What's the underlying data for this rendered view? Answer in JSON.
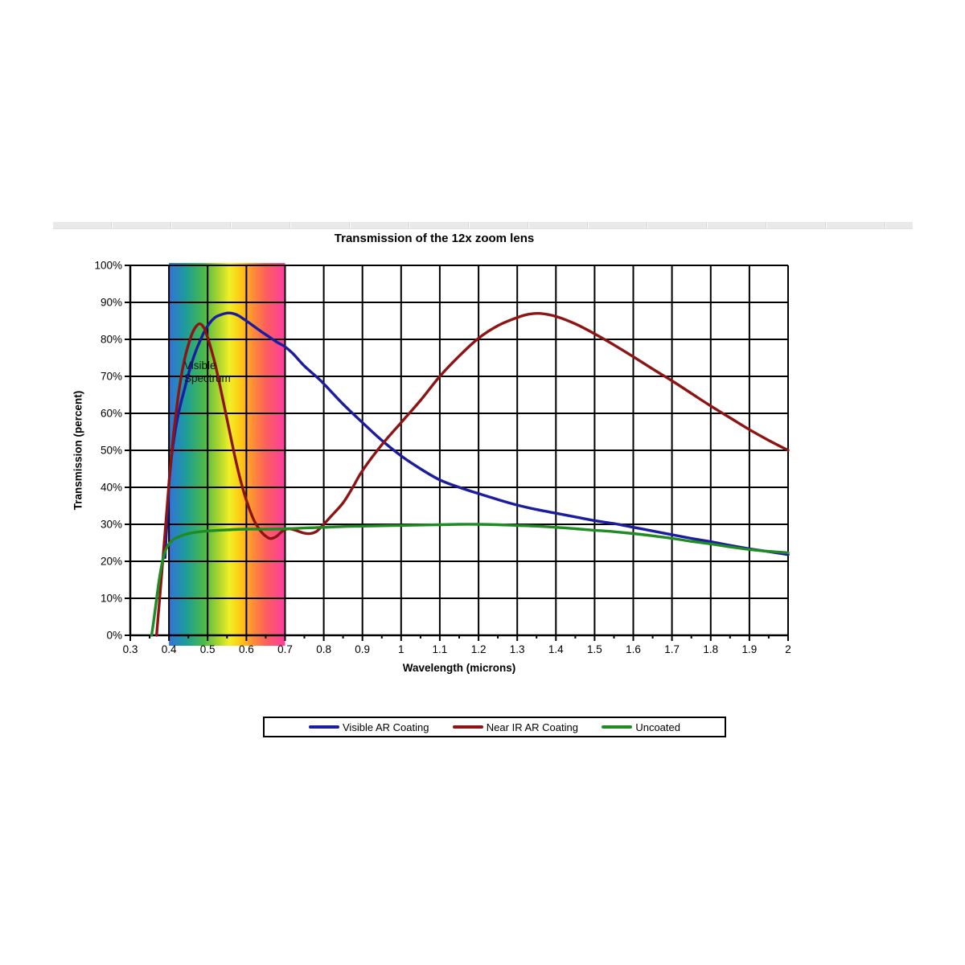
{
  "chart_data": {
    "type": "line",
    "title": "Transmission of the 12x zoom lens",
    "xlabel": "Wavelength (microns)",
    "ylabel": "Transmission (percent)",
    "xlim": [
      0.3,
      2.0
    ],
    "ylim": [
      0,
      100
    ],
    "grid": true,
    "legend_position": "bottom-center",
    "x_tick_labels": [
      "0.3",
      "0.4",
      "0.5",
      "0.6",
      "0.7",
      "0.8",
      "0.9",
      "1",
      "1.1",
      "1.2",
      "1.3",
      "1.4",
      "1.5",
      "1.6",
      "1.7",
      "1.8",
      "1.9",
      "2"
    ],
    "y_tick_labels": [
      "0%",
      "10%",
      "20%",
      "30%",
      "40%",
      "50%",
      "60%",
      "70%",
      "80%",
      "90%",
      "100%"
    ],
    "x_minor_tick_step": 0.05,
    "axis_color": "#000000",
    "visible_spectrum_band": {
      "label": "Visible Spectrum",
      "x_start": 0.4,
      "x_end": 0.7,
      "gradient_stops": [
        {
          "offset": 0,
          "color": "#3272dc"
        },
        {
          "offset": 0.15,
          "color": "#1d9e96"
        },
        {
          "offset": 0.3,
          "color": "#4ab94a"
        },
        {
          "offset": 0.42,
          "color": "#a5d32f"
        },
        {
          "offset": 0.52,
          "color": "#f0ef27"
        },
        {
          "offset": 0.62,
          "color": "#ffc713"
        },
        {
          "offset": 0.72,
          "color": "#fe8f35"
        },
        {
          "offset": 0.84,
          "color": "#fb5e5e"
        },
        {
          "offset": 1,
          "color": "#fd3da2"
        }
      ]
    },
    "series": [
      {
        "name": "Visible AR Coating",
        "color": "#1c1ca0",
        "points": [
          [
            0.39,
            21
          ],
          [
            0.393,
            27
          ],
          [
            0.397,
            34
          ],
          [
            0.4,
            41
          ],
          [
            0.405,
            46.5
          ],
          [
            0.41,
            51
          ],
          [
            0.42,
            57.5
          ],
          [
            0.43,
            62.5
          ],
          [
            0.44,
            66.5
          ],
          [
            0.45,
            70.5
          ],
          [
            0.46,
            74
          ],
          [
            0.47,
            77
          ],
          [
            0.48,
            79.5
          ],
          [
            0.49,
            81.8
          ],
          [
            0.5,
            83.6
          ],
          [
            0.51,
            85
          ],
          [
            0.52,
            86
          ],
          [
            0.535,
            86.7
          ],
          [
            0.55,
            87.1
          ],
          [
            0.565,
            87
          ],
          [
            0.58,
            86.4
          ],
          [
            0.6,
            85
          ],
          [
            0.62,
            83.5
          ],
          [
            0.64,
            82
          ],
          [
            0.66,
            80.6
          ],
          [
            0.68,
            79.2
          ],
          [
            0.7,
            78
          ],
          [
            0.72,
            76.2
          ],
          [
            0.75,
            72.8
          ],
          [
            0.78,
            70
          ],
          [
            0.8,
            68
          ],
          [
            0.85,
            62.5
          ],
          [
            0.9,
            57.5
          ],
          [
            0.95,
            52.7
          ],
          [
            1.0,
            48.5
          ],
          [
            1.05,
            45
          ],
          [
            1.1,
            42
          ],
          [
            1.15,
            40
          ],
          [
            1.2,
            38.3
          ],
          [
            1.25,
            36.7
          ],
          [
            1.3,
            35.2
          ],
          [
            1.35,
            34
          ],
          [
            1.4,
            33
          ],
          [
            1.45,
            32
          ],
          [
            1.5,
            31
          ],
          [
            1.55,
            30.2
          ],
          [
            1.6,
            29.2
          ],
          [
            1.65,
            28.2
          ],
          [
            1.7,
            27.2
          ],
          [
            1.75,
            26.2
          ],
          [
            1.8,
            25.3
          ],
          [
            1.85,
            24.3
          ],
          [
            1.9,
            23.4
          ],
          [
            1.95,
            22.6
          ],
          [
            2.0,
            21.8
          ]
        ]
      },
      {
        "name": "Near IR AR Coating",
        "color": "#8e1414",
        "points": [
          [
            0.368,
            0
          ],
          [
            0.372,
            5
          ],
          [
            0.376,
            10
          ],
          [
            0.38,
            15
          ],
          [
            0.385,
            21.5
          ],
          [
            0.39,
            28
          ],
          [
            0.395,
            34.5
          ],
          [
            0.4,
            41
          ],
          [
            0.41,
            52.5
          ],
          [
            0.42,
            61.5
          ],
          [
            0.43,
            69
          ],
          [
            0.44,
            74.5
          ],
          [
            0.45,
            78.5
          ],
          [
            0.46,
            81.6
          ],
          [
            0.47,
            83.5
          ],
          [
            0.48,
            84.2
          ],
          [
            0.49,
            83.2
          ],
          [
            0.5,
            80.5
          ],
          [
            0.51,
            77
          ],
          [
            0.52,
            73
          ],
          [
            0.53,
            68.3
          ],
          [
            0.54,
            63.4
          ],
          [
            0.55,
            58.4
          ],
          [
            0.56,
            53.4
          ],
          [
            0.57,
            48.5
          ],
          [
            0.58,
            44
          ],
          [
            0.59,
            40
          ],
          [
            0.6,
            36.5
          ],
          [
            0.61,
            33.5
          ],
          [
            0.62,
            31
          ],
          [
            0.63,
            29.2
          ],
          [
            0.64,
            27.8
          ],
          [
            0.65,
            26.8
          ],
          [
            0.66,
            26.2
          ],
          [
            0.67,
            26.3
          ],
          [
            0.68,
            26.9
          ],
          [
            0.69,
            27.9
          ],
          [
            0.7,
            28.6
          ],
          [
            0.71,
            28.8
          ],
          [
            0.72,
            28.6
          ],
          [
            0.735,
            28.1
          ],
          [
            0.75,
            27.6
          ],
          [
            0.765,
            27.5
          ],
          [
            0.78,
            28
          ],
          [
            0.79,
            28.9
          ],
          [
            0.8,
            30
          ],
          [
            0.82,
            32.3
          ],
          [
            0.85,
            35.8
          ],
          [
            0.875,
            40
          ],
          [
            0.9,
            44.5
          ],
          [
            0.95,
            51.5
          ],
          [
            1.0,
            57.5
          ],
          [
            1.05,
            63.5
          ],
          [
            1.1,
            70
          ],
          [
            1.15,
            75.5
          ],
          [
            1.2,
            80.3
          ],
          [
            1.25,
            83.7
          ],
          [
            1.3,
            85.9
          ],
          [
            1.33,
            86.8
          ],
          [
            1.36,
            87
          ],
          [
            1.4,
            86.2
          ],
          [
            1.45,
            84.2
          ],
          [
            1.5,
            81.5
          ],
          [
            1.55,
            78.5
          ],
          [
            1.6,
            75.3
          ],
          [
            1.65,
            72
          ],
          [
            1.7,
            68.8
          ],
          [
            1.75,
            65.4
          ],
          [
            1.8,
            62
          ],
          [
            1.85,
            58.8
          ],
          [
            1.9,
            55.6
          ],
          [
            1.95,
            52.7
          ],
          [
            2.0,
            50
          ]
        ]
      },
      {
        "name": "Uncoated",
        "color": "#1e8c23",
        "points": [
          [
            0.355,
            0
          ],
          [
            0.36,
            3.5
          ],
          [
            0.365,
            7.5
          ],
          [
            0.37,
            11.5
          ],
          [
            0.375,
            15.2
          ],
          [
            0.38,
            18.3
          ],
          [
            0.385,
            20.8
          ],
          [
            0.39,
            22.6
          ],
          [
            0.395,
            23.8
          ],
          [
            0.4,
            24.7
          ],
          [
            0.41,
            25.8
          ],
          [
            0.42,
            26.4
          ],
          [
            0.44,
            27.2
          ],
          [
            0.46,
            27.7
          ],
          [
            0.48,
            28
          ],
          [
            0.5,
            28.2
          ],
          [
            0.55,
            28.5
          ],
          [
            0.6,
            28.7
          ],
          [
            0.65,
            28.7
          ],
          [
            0.7,
            28.8
          ],
          [
            0.75,
            29
          ],
          [
            0.8,
            29.2
          ],
          [
            0.85,
            29.4
          ],
          [
            0.9,
            29.5
          ],
          [
            0.95,
            29.6
          ],
          [
            1.0,
            29.7
          ],
          [
            1.05,
            29.8
          ],
          [
            1.1,
            29.9
          ],
          [
            1.15,
            30
          ],
          [
            1.2,
            30
          ],
          [
            1.25,
            29.9
          ],
          [
            1.3,
            29.7
          ],
          [
            1.35,
            29.5
          ],
          [
            1.4,
            29.2
          ],
          [
            1.45,
            28.8
          ],
          [
            1.5,
            28.4
          ],
          [
            1.55,
            28
          ],
          [
            1.6,
            27.5
          ],
          [
            1.65,
            26.9
          ],
          [
            1.7,
            26.2
          ],
          [
            1.75,
            25.4
          ],
          [
            1.8,
            24.7
          ],
          [
            1.85,
            23.9
          ],
          [
            1.9,
            23.2
          ],
          [
            1.95,
            22.7
          ],
          [
            2.0,
            22.3
          ]
        ]
      }
    ]
  }
}
